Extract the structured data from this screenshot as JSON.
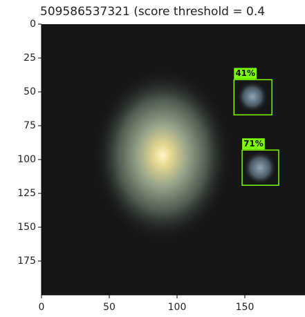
{
  "chart_data": {
    "type": "image",
    "title": "509586537321 (score threshold = 0.4",
    "xlim": [
      0,
      200
    ],
    "ylim": [
      0,
      200
    ],
    "y_inverted": true,
    "xticks": [
      0,
      50,
      100,
      150
    ],
    "yticks": [
      0,
      25,
      50,
      75,
      100,
      125,
      150,
      175
    ],
    "boxes": [
      {
        "x0": 142,
        "y0": 41,
        "x1": 170,
        "y1": 67
      },
      {
        "x0": 148,
        "y0": 93,
        "x1": 175,
        "y1": 119
      }
    ],
    "values": [
      41,
      71
    ],
    "value_labels": [
      "41%",
      "71%"
    ],
    "color": "#7cfc00"
  }
}
